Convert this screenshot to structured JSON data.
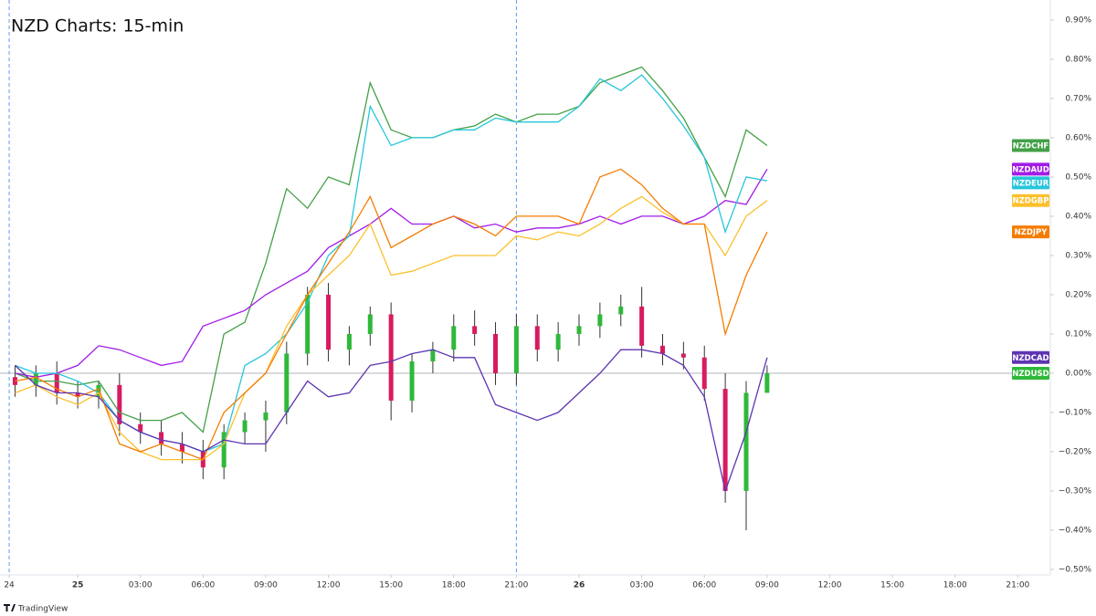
{
  "chart_data": {
    "type": "line",
    "title": "NZD Charts: 15-min",
    "footer": "TradingView",
    "x": [
      -3,
      -2,
      -1,
      0,
      1,
      2,
      3,
      4,
      5,
      6,
      7,
      8,
      9,
      10,
      11,
      12,
      13,
      14,
      15,
      16,
      17,
      18,
      19,
      20,
      21,
      22,
      23,
      24,
      25,
      26,
      27,
      28,
      29,
      30,
      31,
      32,
      33
    ],
    "xlim": [
      -3.72,
      46.56
    ],
    "xticks": [
      {
        "value": -3.28,
        "label": "24"
      },
      {
        "value": 0,
        "label": "25"
      },
      {
        "value": 3,
        "label": "03:00"
      },
      {
        "value": 6,
        "label": "06:00"
      },
      {
        "value": 9,
        "label": "09:00"
      },
      {
        "value": 12,
        "label": "12:00"
      },
      {
        "value": 15,
        "label": "15:00"
      },
      {
        "value": 18,
        "label": "18:00"
      },
      {
        "value": 21,
        "label": "21:00"
      },
      {
        "value": 24,
        "label": "26"
      },
      {
        "value": 27,
        "label": "03:00"
      },
      {
        "value": 30,
        "label": "06:00"
      },
      {
        "value": 33,
        "label": "09:00"
      },
      {
        "value": 36,
        "label": "12:00"
      },
      {
        "value": 39,
        "label": "15:00"
      },
      {
        "value": 42,
        "label": "18:00"
      },
      {
        "value": 45,
        "label": "21:00"
      }
    ],
    "session_lines": [
      -3.28,
      21
    ],
    "ylim": [
      -0.514,
      0.951
    ],
    "yticks": [
      {
        "value": 0.9,
        "label": "0.90%"
      },
      {
        "value": 0.8,
        "label": "0.80%"
      },
      {
        "value": 0.7,
        "label": "0.70%"
      },
      {
        "value": 0.6,
        "label": "0.60%"
      },
      {
        "value": 0.5,
        "label": "0.50%"
      },
      {
        "value": 0.4,
        "label": "0.40%"
      },
      {
        "value": 0.3,
        "label": "0.30%"
      },
      {
        "value": 0.2,
        "label": "0.20%"
      },
      {
        "value": 0.1,
        "label": "0.10%"
      },
      {
        "value": 0,
        "label": "0.00%"
      },
      {
        "value": -0.1,
        "label": "−0.10%"
      },
      {
        "value": -0.2,
        "label": "−0.20%"
      },
      {
        "value": -0.3,
        "label": "−0.30%"
      },
      {
        "value": -0.4,
        "label": "−0.40%"
      },
      {
        "value": -0.5,
        "label": "−0.50%"
      }
    ],
    "series": [
      {
        "name": "NZDCHF",
        "color": "#43a047",
        "values": [
          0.0,
          -0.02,
          -0.02,
          -0.03,
          -0.02,
          -0.1,
          -0.12,
          -0.12,
          -0.1,
          -0.15,
          0.1,
          0.13,
          0.28,
          0.47,
          0.42,
          0.5,
          0.48,
          0.74,
          0.62,
          0.6,
          0.6,
          0.62,
          0.63,
          0.66,
          0.64,
          0.66,
          0.66,
          0.68,
          0.74,
          0.76,
          0.78,
          0.72,
          0.65,
          0.55,
          0.45,
          0.62,
          0.58
        ]
      },
      {
        "name": "NZDAUD",
        "color": "#a21ce8",
        "values": [
          0.0,
          -0.01,
          0.0,
          0.02,
          0.07,
          0.06,
          0.04,
          0.02,
          0.03,
          0.12,
          0.14,
          0.16,
          0.2,
          0.23,
          0.26,
          0.32,
          0.35,
          0.38,
          0.42,
          0.38,
          0.38,
          0.4,
          0.37,
          0.38,
          0.36,
          0.37,
          0.37,
          0.38,
          0.4,
          0.38,
          0.4,
          0.4,
          0.38,
          0.4,
          0.44,
          0.43,
          0.52
        ]
      },
      {
        "name": "NZDEUR",
        "color": "#26c6da",
        "values": [
          0.02,
          0.0,
          0.0,
          -0.02,
          -0.05,
          -0.12,
          -0.15,
          -0.17,
          -0.18,
          -0.2,
          -0.18,
          0.02,
          0.05,
          0.1,
          0.18,
          0.3,
          0.35,
          0.68,
          0.58,
          0.6,
          0.6,
          0.62,
          0.62,
          0.65,
          0.64,
          0.64,
          0.64,
          0.68,
          0.75,
          0.72,
          0.76,
          0.7,
          0.63,
          0.55,
          0.36,
          0.5,
          0.49
        ]
      },
      {
        "name": "NZDGBP",
        "color": "#fbc02d",
        "values": [
          -0.05,
          -0.03,
          -0.06,
          -0.08,
          -0.05,
          -0.15,
          -0.2,
          -0.22,
          -0.22,
          -0.22,
          -0.18,
          -0.05,
          0.0,
          0.12,
          0.2,
          0.25,
          0.3,
          0.38,
          0.25,
          0.26,
          0.28,
          0.3,
          0.3,
          0.3,
          0.35,
          0.34,
          0.36,
          0.35,
          0.38,
          0.42,
          0.45,
          0.41,
          0.38,
          0.38,
          0.3,
          0.4,
          0.44
        ]
      },
      {
        "name": "NZDJPY",
        "color": "#f57c00",
        "values": [
          -0.02,
          -0.01,
          -0.04,
          -0.06,
          -0.04,
          -0.18,
          -0.2,
          -0.18,
          -0.2,
          -0.22,
          -0.1,
          -0.05,
          0.0,
          0.1,
          0.2,
          0.28,
          0.36,
          0.45,
          0.32,
          0.35,
          0.38,
          0.4,
          0.38,
          0.35,
          0.4,
          0.4,
          0.4,
          0.38,
          0.5,
          0.52,
          0.48,
          0.42,
          0.38,
          0.38,
          0.1,
          0.25,
          0.36
        ]
      },
      {
        "name": "NZDCAD",
        "color": "#5e35b1",
        "values": [
          0.02,
          -0.03,
          -0.05,
          -0.05,
          -0.06,
          -0.12,
          -0.15,
          -0.17,
          -0.18,
          -0.2,
          -0.17,
          -0.18,
          -0.18,
          -0.1,
          -0.02,
          -0.06,
          -0.05,
          0.02,
          0.03,
          0.05,
          0.06,
          0.04,
          0.04,
          -0.08,
          -0.1,
          -0.12,
          -0.1,
          -0.05,
          0.0,
          0.06,
          0.06,
          0.05,
          0.02,
          -0.06,
          -0.3,
          -0.15,
          0.04
        ]
      }
    ],
    "candles": {
      "name": "NZDUSD",
      "up_color": "#2fb83a",
      "down_color": "#d81b60",
      "open": [
        -0.01,
        -0.03,
        0.0,
        -0.05,
        -0.06,
        -0.03,
        -0.13,
        -0.15,
        -0.18,
        -0.2,
        -0.24,
        -0.15,
        -0.12,
        -0.1,
        0.05,
        0.2,
        0.06,
        0.1,
        0.15,
        -0.07,
        0.03,
        0.06,
        0.12,
        0.1,
        0.0,
        0.12,
        0.06,
        0.1,
        0.12,
        0.15,
        0.17,
        0.07,
        0.05,
        0.04,
        -0.04,
        -0.3,
        -0.05
      ],
      "high": [
        0.02,
        0.02,
        0.03,
        -0.02,
        -0.02,
        0.0,
        -0.1,
        -0.12,
        -0.15,
        -0.17,
        -0.13,
        -0.1,
        -0.07,
        0.08,
        0.22,
        0.23,
        0.12,
        0.17,
        0.18,
        0.05,
        0.08,
        0.15,
        0.16,
        0.13,
        0.15,
        0.15,
        0.13,
        0.15,
        0.18,
        0.2,
        0.22,
        0.1,
        0.08,
        0.07,
        0.0,
        -0.02,
        0.02
      ],
      "low": [
        -0.06,
        -0.06,
        -0.08,
        -0.09,
        -0.09,
        -0.16,
        -0.18,
        -0.21,
        -0.23,
        -0.27,
        -0.27,
        -0.18,
        -0.2,
        -0.13,
        0.02,
        0.03,
        0.02,
        0.07,
        -0.12,
        -0.1,
        0.0,
        0.03,
        0.07,
        -0.03,
        -0.03,
        0.03,
        0.03,
        0.07,
        0.09,
        0.12,
        0.04,
        0.02,
        0.01,
        -0.07,
        -0.33,
        -0.4,
        -0.04
      ],
      "close": [
        -0.03,
        0.0,
        -0.05,
        -0.06,
        -0.03,
        -0.13,
        -0.15,
        -0.18,
        -0.2,
        -0.24,
        -0.15,
        -0.12,
        -0.1,
        0.05,
        0.2,
        0.06,
        0.1,
        0.15,
        -0.07,
        0.03,
        0.06,
        0.12,
        0.1,
        0.0,
        0.12,
        0.06,
        0.1,
        0.12,
        0.15,
        0.17,
        0.07,
        0.05,
        0.04,
        -0.04,
        -0.3,
        -0.05,
        0.0
      ]
    }
  }
}
